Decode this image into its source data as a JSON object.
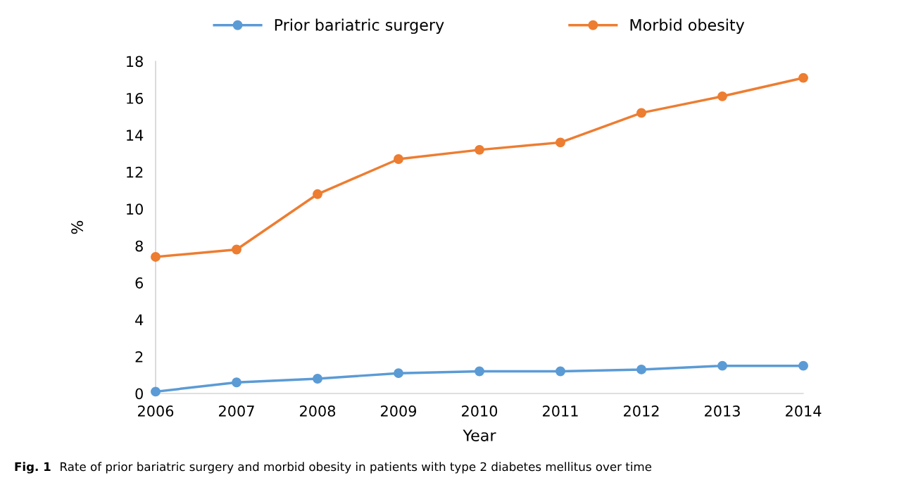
{
  "chart_data": {
    "type": "line",
    "xlabel": "Year",
    "ylabel": "%",
    "x": [
      2006,
      2007,
      2008,
      2009,
      2010,
      2011,
      2012,
      2013,
      2014
    ],
    "series": [
      {
        "name": "Prior bariatric surgery",
        "color": "#5b9bd5",
        "values": [
          0.1,
          0.6,
          0.8,
          1.1,
          1.2,
          1.2,
          1.3,
          1.5,
          1.5
        ]
      },
      {
        "name": "Morbid obesity",
        "color": "#ed7d31",
        "values": [
          7.4,
          7.8,
          10.8,
          12.7,
          13.2,
          13.6,
          15.2,
          16.1,
          17.1
        ]
      }
    ],
    "xlim": [
      2006,
      2014
    ],
    "xticks": [
      2006,
      2007,
      2008,
      2009,
      2010,
      2011,
      2012,
      2013,
      2014
    ],
    "ylim": [
      0,
      18
    ],
    "yticks": [
      0,
      2,
      4,
      6,
      8,
      10,
      12,
      14,
      16,
      18
    ],
    "grid": false,
    "legend": "top",
    "marker": "circle",
    "line_style": "solid",
    "annotations": [
      "Fig. 1",
      "Rate of prior bariatric surgery and morbid obesity in patients with type 2 diabetes mellitus over time"
    ]
  }
}
